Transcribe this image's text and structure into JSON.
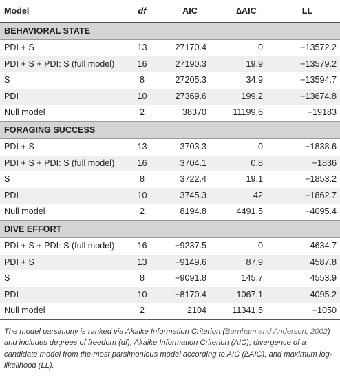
{
  "table": {
    "headers": {
      "model": "Model",
      "df": "df",
      "aic": "AIC",
      "daic": "∆AIC",
      "ll": "LL"
    },
    "sections": [
      {
        "title": "BEHAVIORAL STATE",
        "rows": [
          {
            "model": "PDI + S",
            "df": "13",
            "aic": "27170.4",
            "daic": "0",
            "ll": "−13572.2"
          },
          {
            "model": "PDI + S + PDI: S (full model)",
            "df": "16",
            "aic": "27190.3",
            "daic": "19.9",
            "ll": "−13579.2"
          },
          {
            "model": "S",
            "df": "8",
            "aic": "27205.3",
            "daic": "34.9",
            "ll": "−13594.7"
          },
          {
            "model": "PDI",
            "df": "10",
            "aic": "27369.6",
            "daic": "199.2",
            "ll": "−13674.8"
          },
          {
            "model": "Null model",
            "df": "2",
            "aic": "38370",
            "daic": "11199.6",
            "ll": "−19183"
          }
        ]
      },
      {
        "title": "FORAGING SUCCESS",
        "rows": [
          {
            "model": "PDI + S",
            "df": "13",
            "aic": "3703.3",
            "daic": "0",
            "ll": "−1838.6"
          },
          {
            "model": "PDI + S + PDI: S (full model)",
            "df": "16",
            "aic": "3704.1",
            "daic": "0.8",
            "ll": "−1836"
          },
          {
            "model": "S",
            "df": "8",
            "aic": "3722.4",
            "daic": "19.1",
            "ll": "−1853.2"
          },
          {
            "model": "PDI",
            "df": "10",
            "aic": "3745.3",
            "daic": "42",
            "ll": "−1862.7"
          },
          {
            "model": "Null model",
            "df": "2",
            "aic": "8194.8",
            "daic": "4491.5",
            "ll": "−4095.4"
          }
        ]
      },
      {
        "title": "DIVE EFFORT",
        "rows": [
          {
            "model": "PDI + S + PDI: S (full model)",
            "df": "16",
            "aic": "−9237.5",
            "daic": "0",
            "ll": "4634.7"
          },
          {
            "model": "PDI + S",
            "df": "13",
            "aic": "−9149.6",
            "daic": "87.9",
            "ll": "4587.8"
          },
          {
            "model": "S",
            "df": "8",
            "aic": "−9091.8",
            "daic": "145.7",
            "ll": "4553.9"
          },
          {
            "model": "PDI",
            "df": "10",
            "aic": "−8170.4",
            "daic": "1067.1",
            "ll": "4095.2"
          },
          {
            "model": "Null model",
            "df": "2",
            "aic": "2104",
            "daic": "11341.5",
            "ll": "−1050"
          }
        ]
      }
    ]
  },
  "caption": {
    "before": "The model parsimony is ranked via Akaike Information Criterion (",
    "cite": "Burnham and Anderson, 2002",
    "after": ") and includes degrees of freedom (df); Akaike Information Criterion (AIC); divergence of a candidate model from the most parsimonious model according to AIC (∆AIC); and maximum log-likelihood (LL)."
  }
}
